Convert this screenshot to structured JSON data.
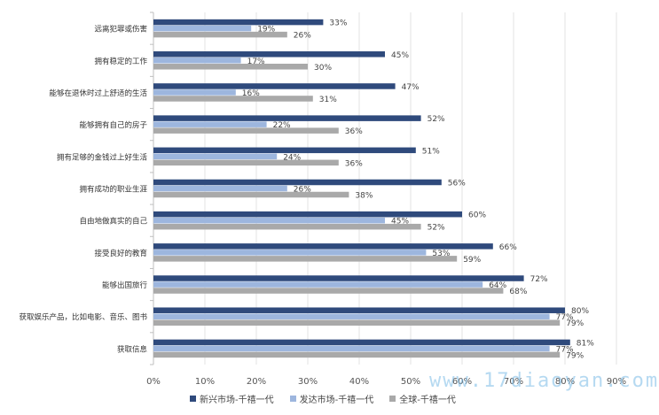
{
  "chart_data": {
    "type": "bar",
    "orientation": "horizontal",
    "categories": [
      "远离犯罪或伤害",
      "拥有稳定的工作",
      "能够在退休时过上舒适的生活",
      "能够拥有自己的房子",
      "拥有足够的金钱过上好生活",
      "拥有成功的职业生涯",
      "自由地做真实的自己",
      "接受良好的教育",
      "能够出国旅行",
      "获取娱乐产品，比如电影、音乐、图书",
      "获取信息"
    ],
    "series": [
      {
        "name": "新兴市场-千禧一代",
        "color": "#2f4a7c",
        "values": [
          33,
          45,
          47,
          52,
          51,
          56,
          60,
          66,
          72,
          80,
          81
        ]
      },
      {
        "name": "发达市场-千禧一代",
        "color": "#9db6de",
        "values": [
          19,
          17,
          16,
          22,
          24,
          26,
          45,
          53,
          64,
          77,
          77
        ]
      },
      {
        "name": "全球-千禧一代",
        "color": "#a9a9a9",
        "values": [
          26,
          30,
          31,
          36,
          36,
          38,
          52,
          59,
          68,
          79,
          79
        ]
      }
    ],
    "xticks": [
      "0%",
      "10%",
      "20%",
      "30%",
      "40%",
      "50%",
      "60%",
      "70%",
      "80%",
      "90%"
    ],
    "xlim": [
      0,
      90
    ],
    "value_suffix": "%",
    "grid": true,
    "legend_position": "bottom"
  },
  "watermark": "www.17diaoyan.com"
}
